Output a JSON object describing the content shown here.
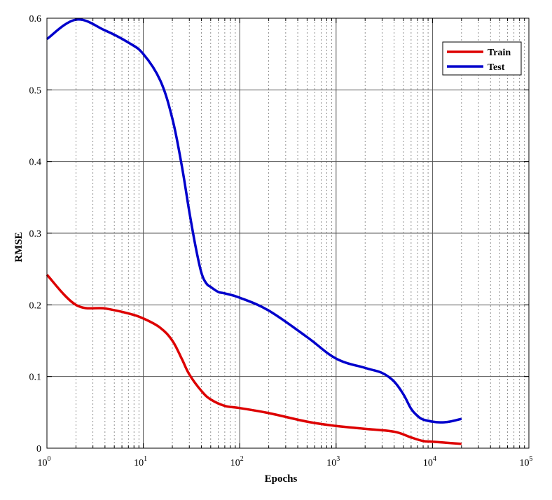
{
  "chart_data": {
    "type": "line",
    "title": "",
    "xlabel": "Epochs",
    "ylabel": "RMSE",
    "xscale": "log",
    "xlim": [
      1,
      100000
    ],
    "ylim": [
      0,
      0.6
    ],
    "x_ticks": [
      {
        "base": "10",
        "exp": "0"
      },
      {
        "base": "10",
        "exp": "1"
      },
      {
        "base": "10",
        "exp": "2"
      },
      {
        "base": "10",
        "exp": "3"
      },
      {
        "base": "10",
        "exp": "4"
      },
      {
        "base": "10",
        "exp": "5"
      }
    ],
    "y_ticks": [
      "0",
      "0.1",
      "0.2",
      "0.3",
      "0.4",
      "0.5",
      "0.6"
    ],
    "grid": true,
    "legend_position": "top-right",
    "series": [
      {
        "name": "Train",
        "color": "#dd0000",
        "x": [
          1,
          2,
          4,
          7,
          10,
          15,
          20,
          25,
          30,
          40,
          50,
          70,
          100,
          200,
          500,
          1000,
          2000,
          4000,
          6000,
          8000,
          10000,
          20000
        ],
        "y": [
          0.242,
          0.2,
          0.195,
          0.188,
          0.181,
          0.168,
          0.15,
          0.125,
          0.103,
          0.08,
          0.068,
          0.059,
          0.056,
          0.049,
          0.037,
          0.031,
          0.027,
          0.023,
          0.015,
          0.01,
          0.009,
          0.006
        ]
      },
      {
        "name": "Test",
        "color": "#0000cc",
        "x": [
          1,
          2,
          4,
          7,
          10,
          15,
          20,
          25,
          30,
          35,
          40,
          45,
          50,
          60,
          70,
          100,
          200,
          500,
          1000,
          2000,
          3000,
          4000,
          5000,
          6000,
          7000,
          8000,
          10000,
          12000,
          15000,
          20000
        ],
        "y": [
          0.571,
          0.598,
          0.583,
          0.566,
          0.55,
          0.513,
          0.46,
          0.395,
          0.33,
          0.28,
          0.245,
          0.23,
          0.225,
          0.218,
          0.216,
          0.21,
          0.192,
          0.155,
          0.125,
          0.112,
          0.105,
          0.093,
          0.075,
          0.055,
          0.045,
          0.04,
          0.037,
          0.036,
          0.037,
          0.041
        ]
      }
    ]
  }
}
